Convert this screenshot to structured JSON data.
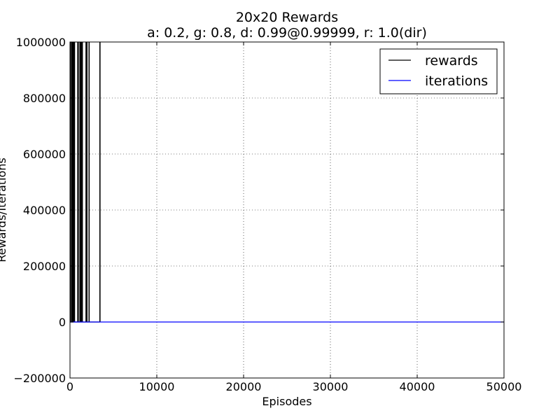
{
  "chart_data": {
    "type": "line",
    "title": "20x20 Rewards",
    "subtitle": "a: 0.2, g: 0.8, d: 0.99@0.99999, r: 1.0(dir)",
    "xlabel": "Episodes",
    "ylabel": "Rewards/Iterations",
    "xlim": [
      0,
      50000
    ],
    "ylim": [
      -200000,
      1000000
    ],
    "x_ticks": [
      0,
      10000,
      20000,
      30000,
      40000,
      50000
    ],
    "y_ticks": [
      -200000,
      0,
      200000,
      400000,
      600000,
      800000,
      1000000
    ],
    "x_tick_labels": [
      "0",
      "10000",
      "20000",
      "30000",
      "40000",
      "50000"
    ],
    "y_tick_labels": [
      "−200000",
      "0",
      "200000",
      "400000",
      "600000",
      "800000",
      "1000000"
    ],
    "grid": true,
    "legend_position": "top-right",
    "series": [
      {
        "name": "rewards",
        "color": "#000000",
        "baseline": 0,
        "spikes": [
          {
            "x": 50,
            "y": 1000000
          },
          {
            "x": 200,
            "y": 1000000
          },
          {
            "x": 330,
            "y": 1000000
          },
          {
            "x": 450,
            "y": 1000000
          },
          {
            "x": 520,
            "y": 1000000
          },
          {
            "x": 900,
            "y": 1000000
          },
          {
            "x": 950,
            "y": 1000000
          },
          {
            "x": 1150,
            "y": 1000000
          },
          {
            "x": 1250,
            "y": 1000000
          },
          {
            "x": 1350,
            "y": 1000000
          },
          {
            "x": 1420,
            "y": 1000000
          },
          {
            "x": 1850,
            "y": 1000000
          },
          {
            "x": 1950,
            "y": 1000000
          },
          {
            "x": 2200,
            "y": 1000000
          },
          {
            "x": 3450,
            "y": 1000000
          }
        ]
      },
      {
        "name": "iterations",
        "color": "#0000ff",
        "x": [
          0,
          50000
        ],
        "y": [
          0,
          0
        ]
      }
    ]
  }
}
